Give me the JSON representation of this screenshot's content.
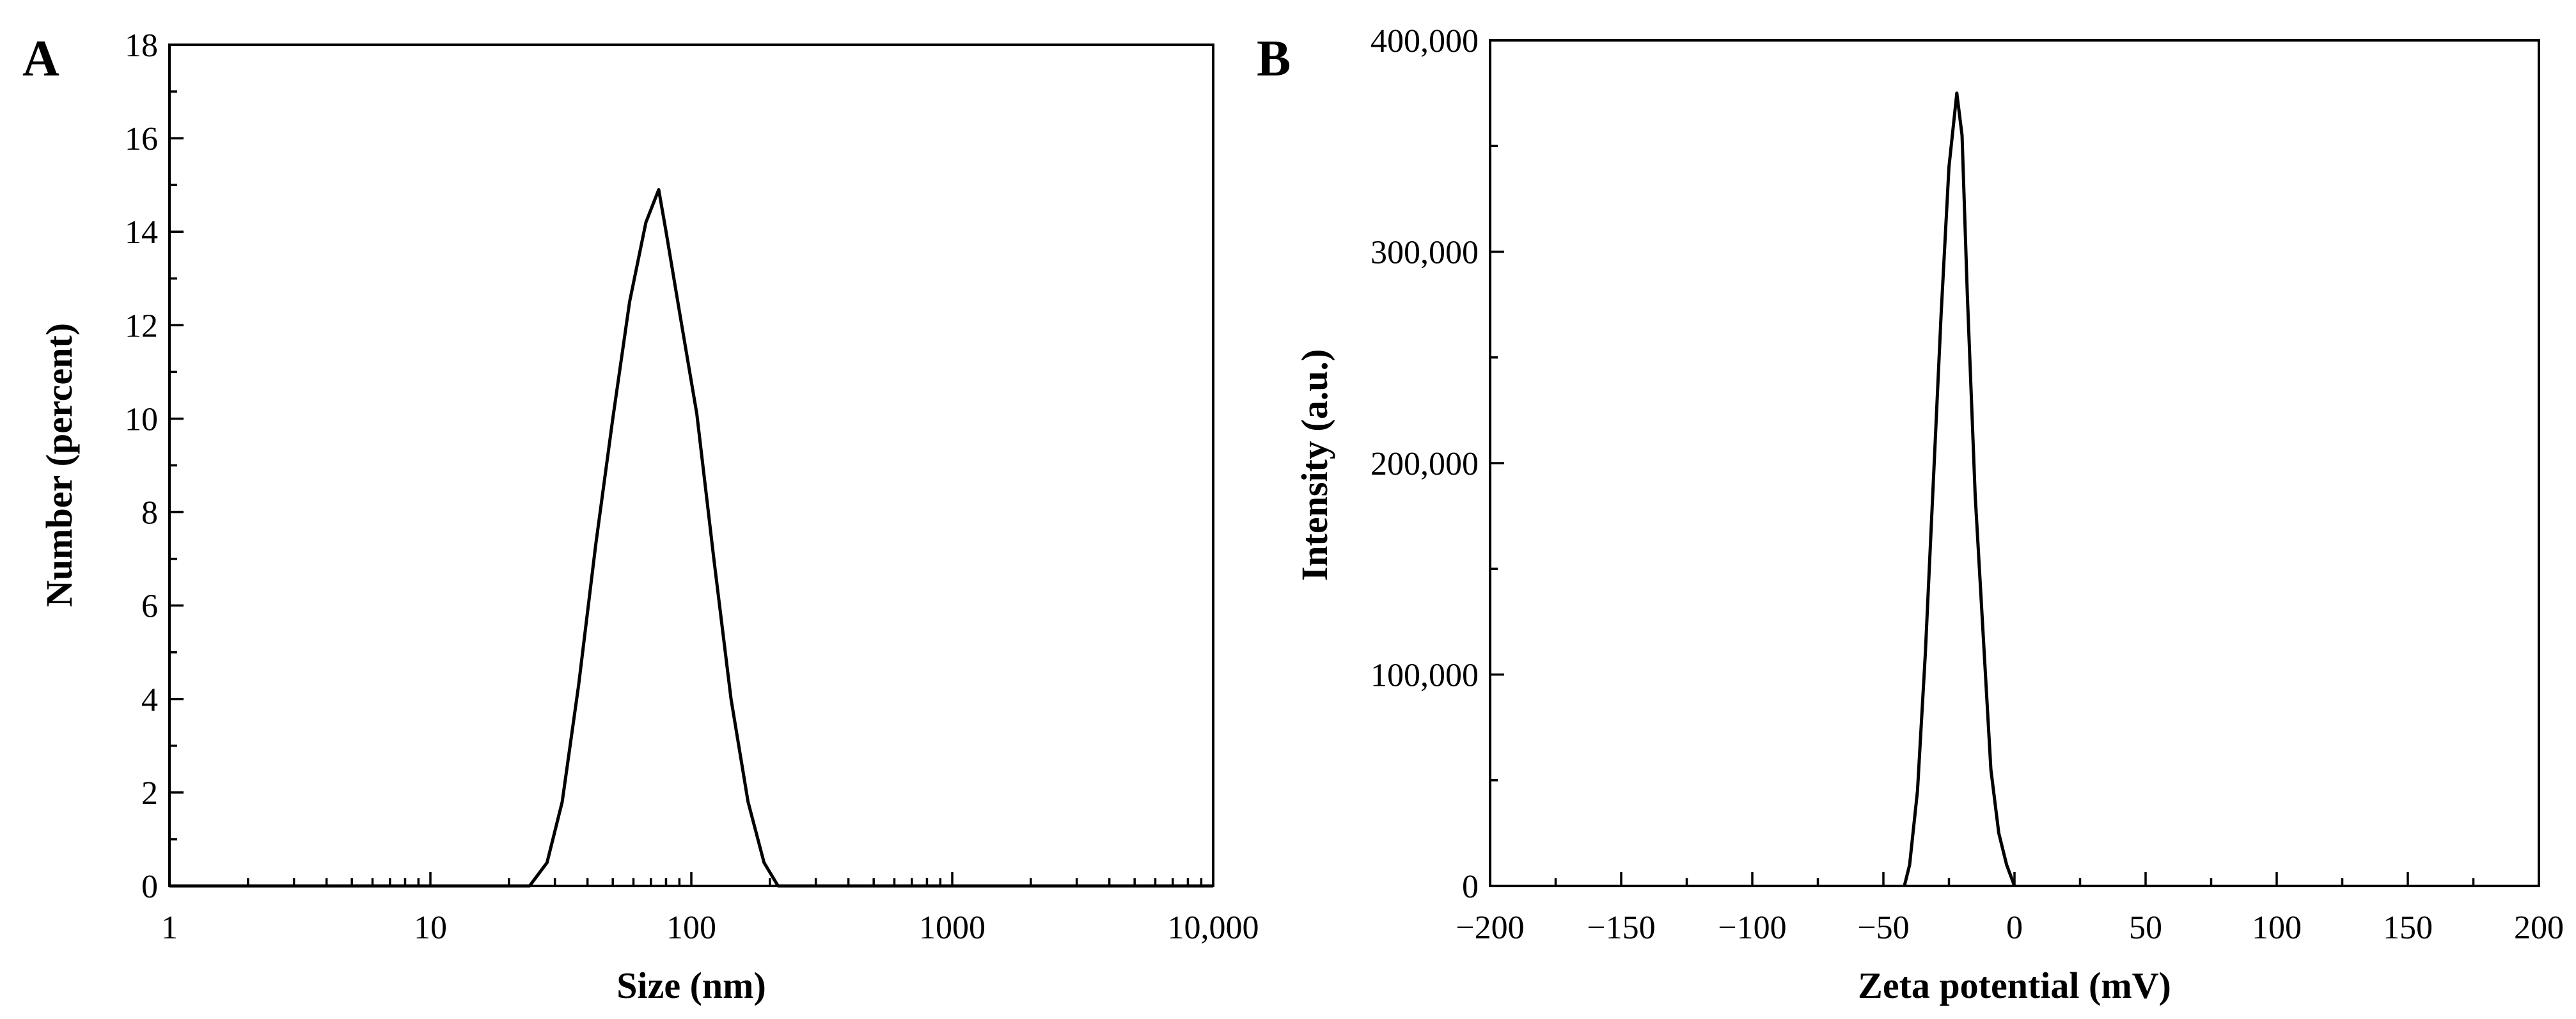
{
  "chart_data": [
    {
      "panel": "A",
      "type": "line",
      "xlabel": "Size (nm)",
      "ylabel": "Number (percent)",
      "xscale": "log",
      "xlim": [
        1,
        10000
      ],
      "ylim": [
        0,
        18
      ],
      "xticks": [
        "1",
        "10",
        "100",
        "1000",
        "10,000"
      ],
      "yticks": [
        "0",
        "2",
        "4",
        "6",
        "8",
        "10",
        "12",
        "14",
        "16",
        "18"
      ],
      "grid": false,
      "series": [
        {
          "x": [
            1,
            24,
            28,
            32,
            37,
            43,
            50,
            58,
            67,
            75,
            80,
            90,
            105,
            122,
            142,
            165,
            190,
            215,
            10000
          ],
          "y": [
            0,
            0,
            0.5,
            1.8,
            4.3,
            7.3,
            10.0,
            12.5,
            14.2,
            14.9,
            14.0,
            12.3,
            10.1,
            7.0,
            4.0,
            1.8,
            0.5,
            0,
            0
          ]
        }
      ]
    },
    {
      "panel": "B",
      "type": "line",
      "xlabel": "Zeta potential (mV)",
      "ylabel": "Intensity (a.u.)",
      "xlim": [
        -200,
        200
      ],
      "ylim": [
        0,
        400000
      ],
      "xticks": [
        "−200",
        "−150",
        "−100",
        "−50",
        "0",
        "50",
        "100",
        "150",
        "200"
      ],
      "yticks": [
        "0",
        "100,000",
        "200,000",
        "300,000",
        "400,000"
      ],
      "grid": false,
      "series": [
        {
          "x": [
            -42,
            -40,
            -37,
            -34,
            -31,
            -28,
            -25,
            -22,
            -20,
            -18,
            -15,
            -12,
            -9,
            -6,
            -3,
            0
          ],
          "y": [
            0,
            10000,
            45000,
            110000,
            190000,
            270000,
            340000,
            375000,
            355000,
            280000,
            185000,
            120000,
            55000,
            25000,
            10000,
            0
          ]
        }
      ]
    }
  ]
}
